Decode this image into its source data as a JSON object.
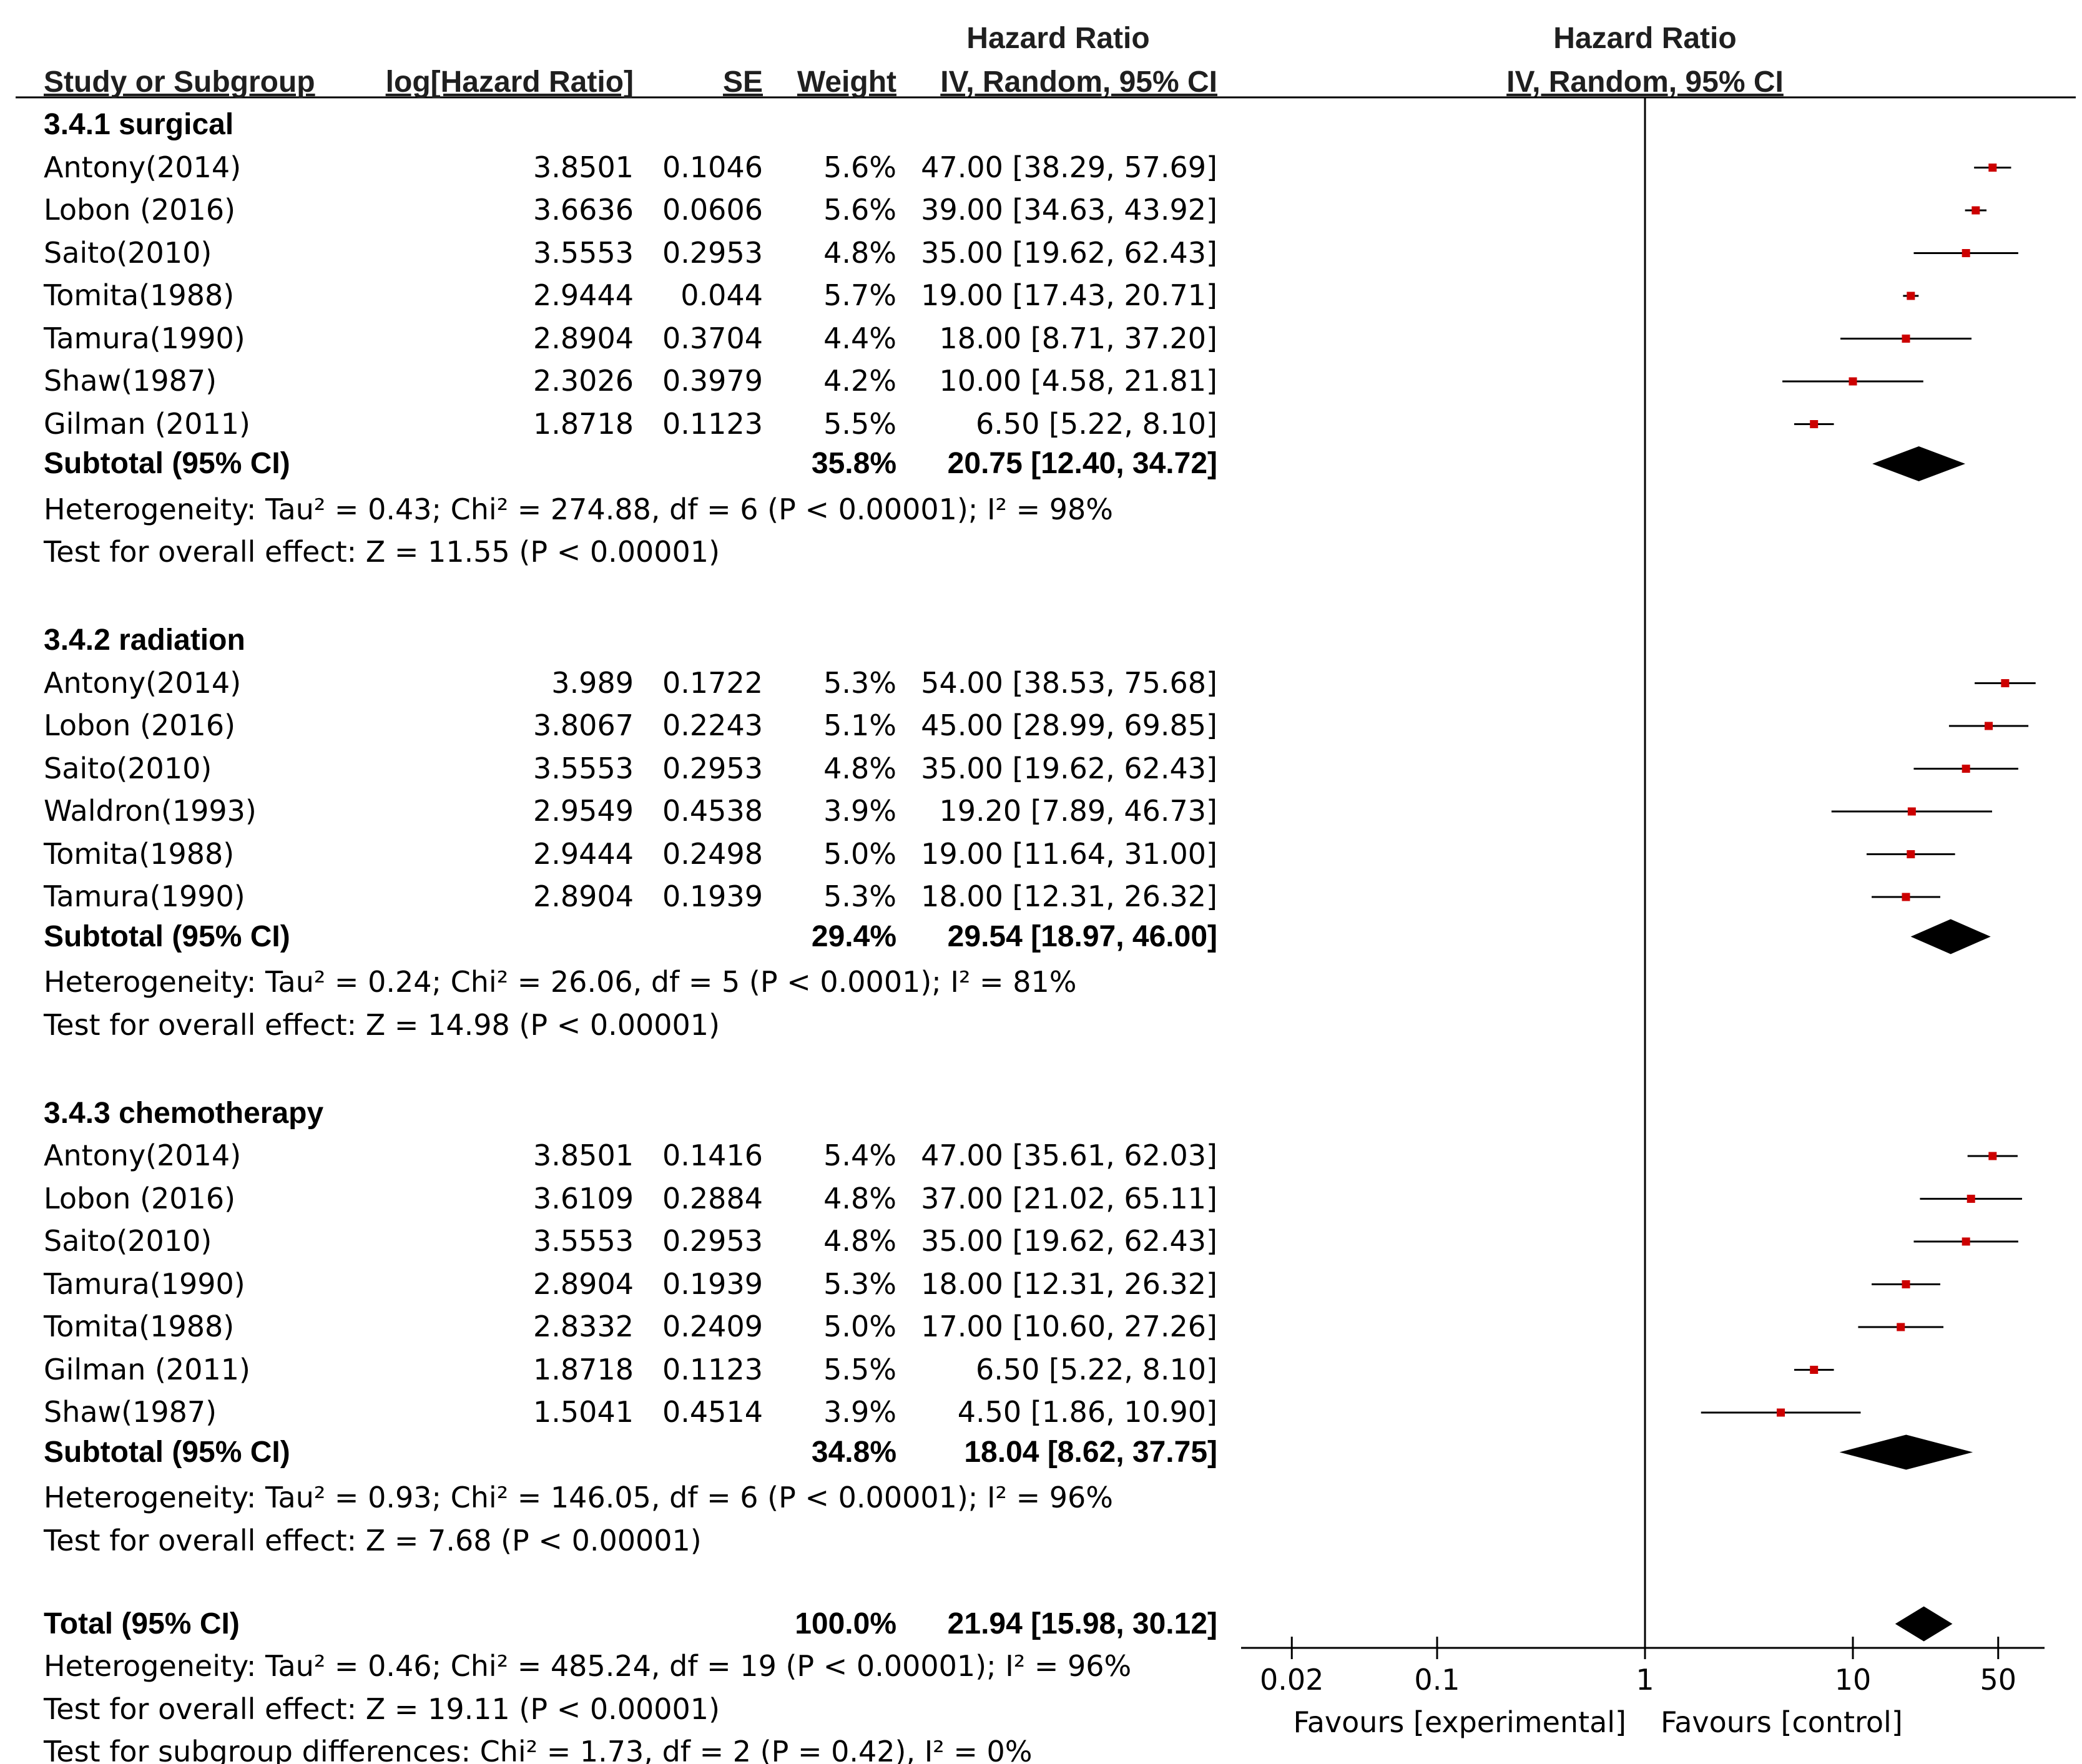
{
  "header": {
    "hr_title_table": "Hazard Ratio",
    "hr_title_plot": "Hazard Ratio",
    "col_study": "Study or Subgroup",
    "col_loghr": "log[Hazard Ratio]",
    "col_se": "SE",
    "col_weight": "Weight",
    "col_ci_table": "IV, Random, 95% CI",
    "col_ci_plot": "IV, Random, 95% CI"
  },
  "groups": [
    {
      "title": "3.4.1 surgical",
      "studies": [
        {
          "study": "Antony(2014)",
          "loghr": "3.8501",
          "se": "0.1046",
          "weight": "5.6%",
          "ci": "47.00 [38.29, 57.69]"
        },
        {
          "study": "Lobon (2016)",
          "loghr": "3.6636",
          "se": "0.0606",
          "weight": "5.6%",
          "ci": "39.00 [34.63, 43.92]"
        },
        {
          "study": "Saito(2010)",
          "loghr": "3.5553",
          "se": "0.2953",
          "weight": "4.8%",
          "ci": "35.00 [19.62, 62.43]"
        },
        {
          "study": "Tomita(1988)",
          "loghr": "2.9444",
          "se": "0.044",
          "weight": "5.7%",
          "ci": "19.00 [17.43, 20.71]"
        },
        {
          "study": "Tamura(1990)",
          "loghr": "2.8904",
          "se": "0.3704",
          "weight": "4.4%",
          "ci": "18.00 [8.71, 37.20]"
        },
        {
          "study": "Shaw(1987)",
          "loghr": "2.3026",
          "se": "0.3979",
          "weight": "4.2%",
          "ci": "10.00 [4.58, 21.81]"
        },
        {
          "study": "Gilman (2011)",
          "loghr": "1.8718",
          "se": "0.1123",
          "weight": "5.5%",
          "ci": "6.50 [5.22, 8.10]"
        }
      ],
      "subtotal_label": "Subtotal (95% CI)",
      "subtotal_weight": "35.8%",
      "subtotal_ci": "20.75 [12.40, 34.72]",
      "heterogeneity": "Heterogeneity: Tau² = 0.43; Chi² = 274.88, df = 6 (P < 0.00001); I² = 98%",
      "overall": "Test for overall effect: Z = 11.55 (P < 0.00001)"
    },
    {
      "title": "3.4.2 radiation",
      "studies": [
        {
          "study": "Antony(2014)",
          "loghr": "3.989",
          "se": "0.1722",
          "weight": "5.3%",
          "ci": "54.00 [38.53, 75.68]"
        },
        {
          "study": "Lobon (2016)",
          "loghr": "3.8067",
          "se": "0.2243",
          "weight": "5.1%",
          "ci": "45.00 [28.99, 69.85]"
        },
        {
          "study": "Saito(2010)",
          "loghr": "3.5553",
          "se": "0.2953",
          "weight": "4.8%",
          "ci": "35.00 [19.62, 62.43]"
        },
        {
          "study": "Waldron(1993)",
          "loghr": "2.9549",
          "se": "0.4538",
          "weight": "3.9%",
          "ci": "19.20 [7.89, 46.73]"
        },
        {
          "study": "Tomita(1988)",
          "loghr": "2.9444",
          "se": "0.2498",
          "weight": "5.0%",
          "ci": "19.00 [11.64, 31.00]"
        },
        {
          "study": "Tamura(1990)",
          "loghr": "2.8904",
          "se": "0.1939",
          "weight": "5.3%",
          "ci": "18.00 [12.31, 26.32]"
        }
      ],
      "subtotal_label": "Subtotal (95% CI)",
      "subtotal_weight": "29.4%",
      "subtotal_ci": "29.54 [18.97, 46.00]",
      "heterogeneity": "Heterogeneity: Tau² = 0.24; Chi² = 26.06, df = 5 (P < 0.0001); I² = 81%",
      "overall": "Test for overall effect: Z = 14.98 (P < 0.00001)"
    },
    {
      "title": "3.4.3 chemotherapy",
      "studies": [
        {
          "study": "Antony(2014)",
          "loghr": "3.8501",
          "se": "0.1416",
          "weight": "5.4%",
          "ci": "47.00 [35.61, 62.03]"
        },
        {
          "study": "Lobon (2016)",
          "loghr": "3.6109",
          "se": "0.2884",
          "weight": "4.8%",
          "ci": "37.00 [21.02, 65.11]"
        },
        {
          "study": "Saito(2010)",
          "loghr": "3.5553",
          "se": "0.2953",
          "weight": "4.8%",
          "ci": "35.00 [19.62, 62.43]"
        },
        {
          "study": "Tamura(1990)",
          "loghr": "2.8904",
          "se": "0.1939",
          "weight": "5.3%",
          "ci": "18.00 [12.31, 26.32]"
        },
        {
          "study": "Tomita(1988)",
          "loghr": "2.8332",
          "se": "0.2409",
          "weight": "5.0%",
          "ci": "17.00 [10.60, 27.26]"
        },
        {
          "study": "Gilman (2011)",
          "loghr": "1.8718",
          "se": "0.1123",
          "weight": "5.5%",
          "ci": "6.50 [5.22, 8.10]"
        },
        {
          "study": "Shaw(1987)",
          "loghr": "1.5041",
          "se": "0.4514",
          "weight": "3.9%",
          "ci": "4.50 [1.86, 10.90]"
        }
      ],
      "subtotal_label": "Subtotal (95% CI)",
      "subtotal_weight": "34.8%",
      "subtotal_ci": "18.04 [8.62, 37.75]",
      "heterogeneity": "Heterogeneity: Tau² = 0.93; Chi² = 146.05, df = 6 (P < 0.00001); I² = 96%",
      "overall": "Test for overall effect: Z = 7.68 (P < 0.00001)"
    }
  ],
  "total": {
    "label": "Total (95% CI)",
    "weight": "100.0%",
    "ci": "21.94 [15.98, 30.12]",
    "heterogeneity": "Heterogeneity: Tau² = 0.46; Chi² = 485.24, df = 19 (P < 0.00001); I² = 96%",
    "overall": "Test for overall effect: Z = 19.11 (P < 0.00001)",
    "subgroup": "Test for subgroup differences: Chi² = 1.73, df = 2 (P = 0.42), I² = 0%"
  },
  "axis": {
    "ticks": [
      "0.02",
      "0.1",
      "1",
      "10",
      "50"
    ],
    "favours_left": "Favours [experimental]",
    "favours_right": "Favours [control]"
  },
  "colors": {
    "point": "#cc0000",
    "line": "#000000",
    "diamond": "#000000"
  },
  "chart_data": {
    "type": "forest",
    "scale": "log",
    "xlim": [
      0.01,
      100
    ],
    "axis_ticks": [
      0.02,
      0.1,
      1,
      10,
      50
    ],
    "groups": [
      {
        "name": "3.4.1 surgical",
        "studies": [
          {
            "study": "Antony(2014)",
            "hr": 47.0,
            "lo": 38.29,
            "hi": 57.69,
            "weight": 5.6
          },
          {
            "study": "Lobon (2016)",
            "hr": 39.0,
            "lo": 34.63,
            "hi": 43.92,
            "weight": 5.6
          },
          {
            "study": "Saito(2010)",
            "hr": 35.0,
            "lo": 19.62,
            "hi": 62.43,
            "weight": 4.8
          },
          {
            "study": "Tomita(1988)",
            "hr": 19.0,
            "lo": 17.43,
            "hi": 20.71,
            "weight": 5.7
          },
          {
            "study": "Tamura(1990)",
            "hr": 18.0,
            "lo": 8.71,
            "hi": 37.2,
            "weight": 4.4
          },
          {
            "study": "Shaw(1987)",
            "hr": 10.0,
            "lo": 4.58,
            "hi": 21.81,
            "weight": 4.2
          },
          {
            "study": "Gilman (2011)",
            "hr": 6.5,
            "lo": 5.22,
            "hi": 8.1,
            "weight": 5.5
          }
        ],
        "subtotal": {
          "hr": 20.75,
          "lo": 12.4,
          "hi": 34.72
        }
      },
      {
        "name": "3.4.2 radiation",
        "studies": [
          {
            "study": "Antony(2014)",
            "hr": 54.0,
            "lo": 38.53,
            "hi": 75.68,
            "weight": 5.3
          },
          {
            "study": "Lobon (2016)",
            "hr": 45.0,
            "lo": 28.99,
            "hi": 69.85,
            "weight": 5.1
          },
          {
            "study": "Saito(2010)",
            "hr": 35.0,
            "lo": 19.62,
            "hi": 62.43,
            "weight": 4.8
          },
          {
            "study": "Waldron(1993)",
            "hr": 19.2,
            "lo": 7.89,
            "hi": 46.73,
            "weight": 3.9
          },
          {
            "study": "Tomita(1988)",
            "hr": 19.0,
            "lo": 11.64,
            "hi": 31.0,
            "weight": 5.0
          },
          {
            "study": "Tamura(1990)",
            "hr": 18.0,
            "lo": 12.31,
            "hi": 26.32,
            "weight": 5.3
          }
        ],
        "subtotal": {
          "hr": 29.54,
          "lo": 18.97,
          "hi": 46.0
        }
      },
      {
        "name": "3.4.3 chemotherapy",
        "studies": [
          {
            "study": "Antony(2014)",
            "hr": 47.0,
            "lo": 35.61,
            "hi": 62.03,
            "weight": 5.4
          },
          {
            "study": "Lobon (2016)",
            "hr": 37.0,
            "lo": 21.02,
            "hi": 65.11,
            "weight": 4.8
          },
          {
            "study": "Saito(2010)",
            "hr": 35.0,
            "lo": 19.62,
            "hi": 62.43,
            "weight": 4.8
          },
          {
            "study": "Tamura(1990)",
            "hr": 18.0,
            "lo": 12.31,
            "hi": 26.32,
            "weight": 5.3
          },
          {
            "study": "Tomita(1988)",
            "hr": 17.0,
            "lo": 10.6,
            "hi": 27.26,
            "weight": 5.0
          },
          {
            "study": "Gilman (2011)",
            "hr": 6.5,
            "lo": 5.22,
            "hi": 8.1,
            "weight": 5.5
          },
          {
            "study": "Shaw(1987)",
            "hr": 4.5,
            "lo": 1.86,
            "hi": 10.9,
            "weight": 3.9
          }
        ],
        "subtotal": {
          "hr": 18.04,
          "lo": 8.62,
          "hi": 37.75
        }
      }
    ],
    "total": {
      "hr": 21.94,
      "lo": 15.98,
      "hi": 30.12
    }
  }
}
